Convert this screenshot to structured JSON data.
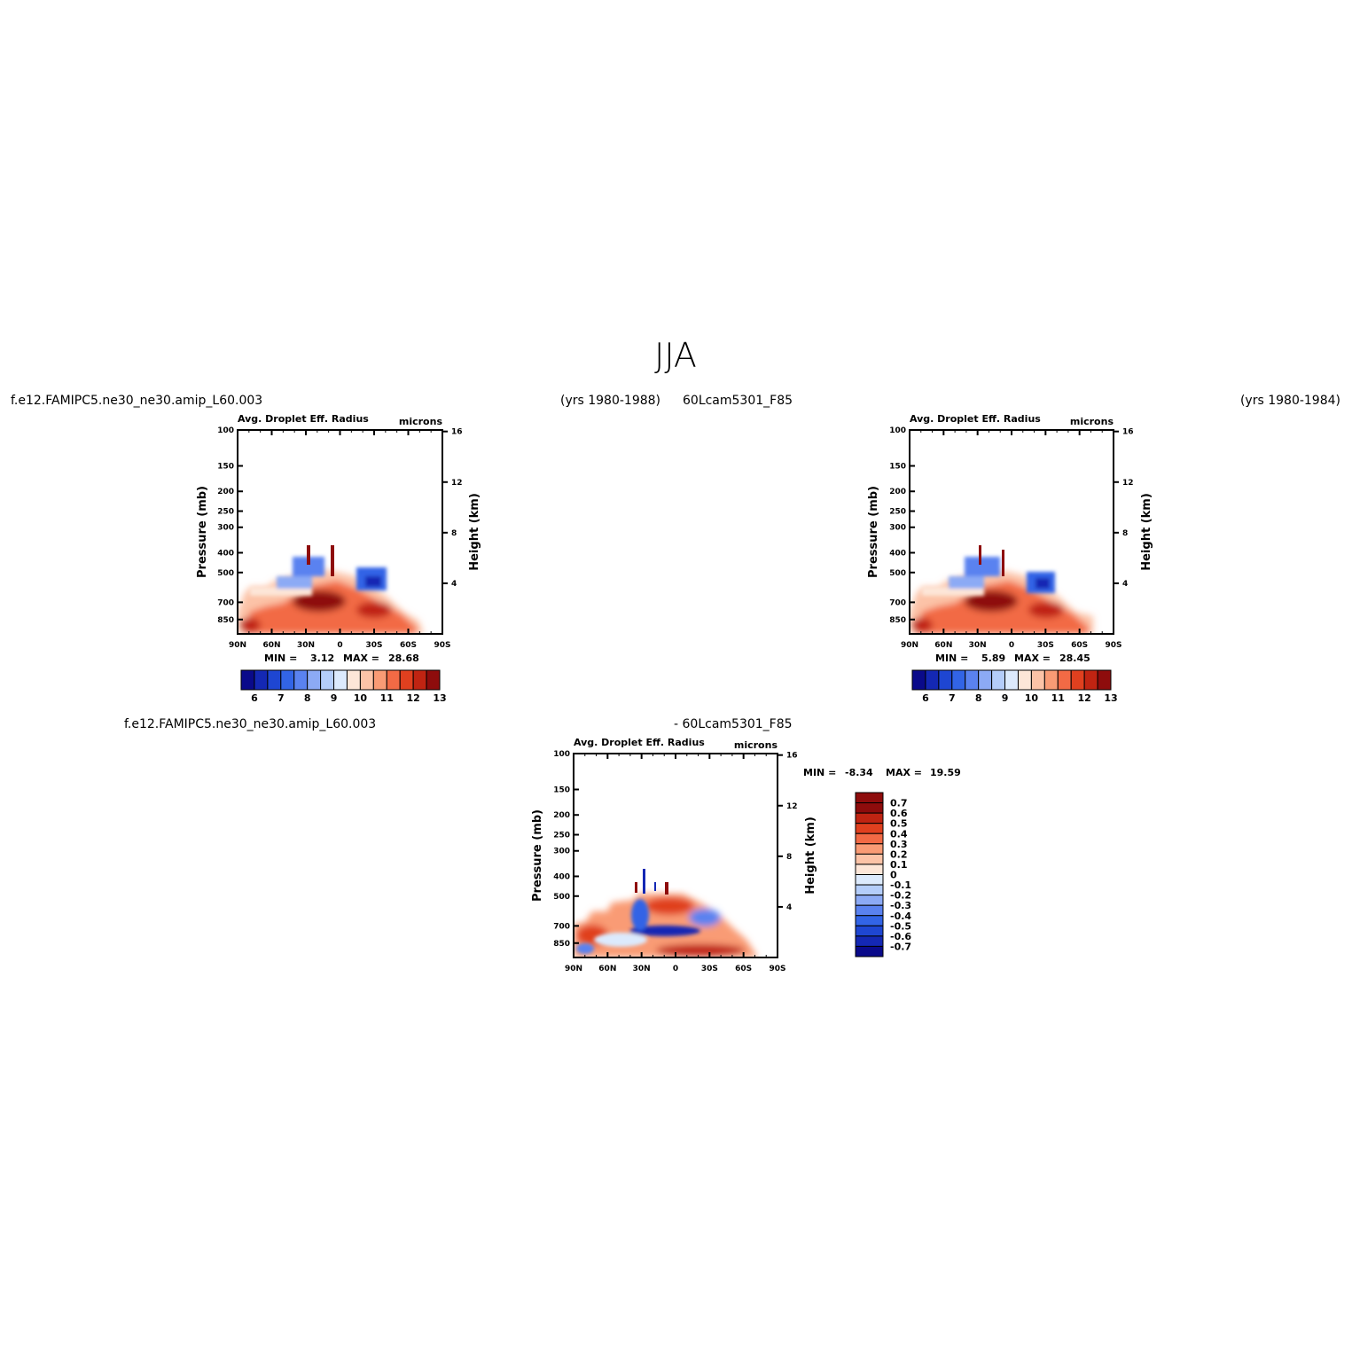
{
  "page_title": "JJA",
  "headers": {
    "case1_name": "f.e12.FAMIPC5.ne30_ne30.amip_L60.003",
    "case1_years": "(yrs 1980-1988)",
    "case2_name": "60Lcam5301_F85",
    "case2_years": "(yrs 1980-1984)",
    "diff_case1": "f.e12.FAMIPC5.ne30_ne30.amip_L60.003",
    "diff_case2": "- 60Lcam5301_F85"
  },
  "chart_data": [
    {
      "id": "panel1",
      "type": "heatmap",
      "title": "Avg. Droplet Eff. Radius",
      "units": "microns",
      "xlabel": "",
      "ylabel": "Pressure (mb)",
      "y2label": "Height (km)",
      "xticks": [
        "90N",
        "60N",
        "30N",
        "0",
        "30S",
        "60S",
        "90S"
      ],
      "yticks": [
        "100",
        "150",
        "200",
        "250",
        "300",
        "400",
        "500",
        "700",
        "850"
      ],
      "y2ticks": [
        "16",
        "12",
        "8",
        "4"
      ],
      "stats": {
        "min_label": "MIN =",
        "min": "3.12",
        "max_label": "MAX =",
        "max": "28.68"
      },
      "colorbar": {
        "labels": [
          "6",
          "7",
          "8",
          "9",
          "10",
          "11",
          "12",
          "13"
        ]
      }
    },
    {
      "id": "panel2",
      "type": "heatmap",
      "title": "Avg. Droplet Eff. Radius",
      "units": "microns",
      "xlabel": "",
      "ylabel": "Pressure (mb)",
      "y2label": "Height (km)",
      "xticks": [
        "90N",
        "60N",
        "30N",
        "0",
        "30S",
        "60S",
        "90S"
      ],
      "yticks": [
        "100",
        "150",
        "200",
        "250",
        "300",
        "400",
        "500",
        "700",
        "850"
      ],
      "y2ticks": [
        "16",
        "12",
        "8",
        "4"
      ],
      "stats": {
        "min_label": "MIN =",
        "min": "5.89",
        "max_label": "MAX =",
        "max": "28.45"
      },
      "colorbar": {
        "labels": [
          "6",
          "7",
          "8",
          "9",
          "10",
          "11",
          "12",
          "13"
        ]
      }
    },
    {
      "id": "diff",
      "type": "heatmap",
      "title": "Avg. Droplet Eff. Radius",
      "units": "microns",
      "xlabel": "",
      "ylabel": "Pressure (mb)",
      "y2label": "Height (km)",
      "xticks": [
        "90N",
        "60N",
        "30N",
        "0",
        "30S",
        "60S",
        "90S"
      ],
      "yticks": [
        "100",
        "150",
        "200",
        "250",
        "300",
        "400",
        "500",
        "700",
        "850"
      ],
      "y2ticks": [
        "16",
        "12",
        "8",
        "4"
      ],
      "stats": {
        "min_label": "MIN =",
        "min": "-8.34",
        "max_label": "MAX =",
        "max": "19.59"
      },
      "colorbar": {
        "labels": [
          "0.7",
          "0.6",
          "0.5",
          "0.4",
          "0.3",
          "0.2",
          "0.1",
          "0",
          "-0.1",
          "-0.2",
          "-0.3",
          "-0.4",
          "-0.5",
          "-0.6",
          "-0.7"
        ]
      }
    }
  ],
  "colors": {
    "scale": [
      "#0a0a8a",
      "#1428b4",
      "#1e46d2",
      "#3264e6",
      "#5a82f0",
      "#8caaf5",
      "#b4cdfa",
      "#dceafd",
      "#fde6d8",
      "#fcc3a7",
      "#f99b75",
      "#f26a45",
      "#e0401f",
      "#c02412",
      "#8e0c0c"
    ]
  }
}
